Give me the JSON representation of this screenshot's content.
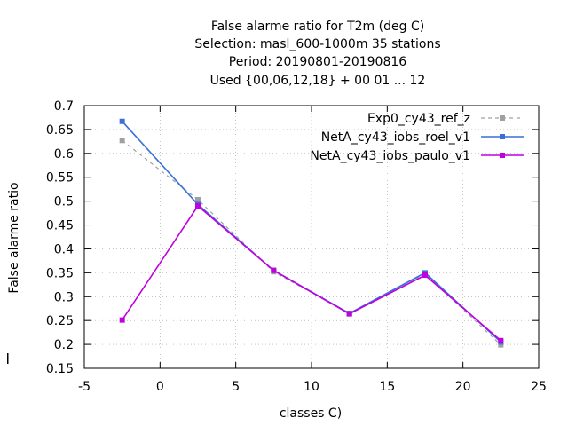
{
  "chart_data": {
    "type": "line",
    "title_lines": [
      "False alarme ratio  for T2m (deg C)",
      "Selection: masl_600-1000m     35 stations",
      "Period: 20190801-20190816",
      "Used {00,06,12,18} + 00 01 ... 12"
    ],
    "xlabel": "classes C)",
    "ylabel": "False alarme ratio",
    "xlim": [
      -5,
      25
    ],
    "ylim": [
      0.15,
      0.7
    ],
    "x_ticks": [
      -5,
      0,
      5,
      10,
      15,
      20,
      25
    ],
    "y_ticks": [
      0.15,
      0.2,
      0.25,
      0.3,
      0.35,
      0.4,
      0.45,
      0.5,
      0.55,
      0.6,
      0.65,
      0.7
    ],
    "x_tick_labels": [
      "-5",
      "0",
      "5",
      "10",
      "15",
      "20",
      "25"
    ],
    "y_tick_labels": [
      "0.15",
      "0.2",
      "0.25",
      "0.3",
      "0.35",
      "0.4",
      "0.45",
      "0.5",
      "0.55",
      "0.6",
      "0.65",
      "0.7"
    ],
    "grid": true,
    "legend_position": "top-right",
    "x": [
      -2.5,
      2.5,
      7.5,
      12.5,
      17.5,
      22.5
    ],
    "series": [
      {
        "name": "Exp0_cy43_ref_z",
        "color": "#a0a0a0",
        "dashed": true,
        "values": [
          0.627,
          0.503,
          0.352,
          0.265,
          0.348,
          0.199
        ]
      },
      {
        "name": "NetA_cy43_iobs_roel_v1",
        "color": "#3a6fd8",
        "dashed": false,
        "values": [
          0.667,
          0.493,
          0.355,
          0.265,
          0.35,
          0.205
        ]
      },
      {
        "name": "NetA_cy43_iobs_paulo_v1",
        "color": "#c000e0",
        "dashed": false,
        "values": [
          0.251,
          0.49,
          0.355,
          0.264,
          0.345,
          0.208
        ]
      }
    ]
  }
}
